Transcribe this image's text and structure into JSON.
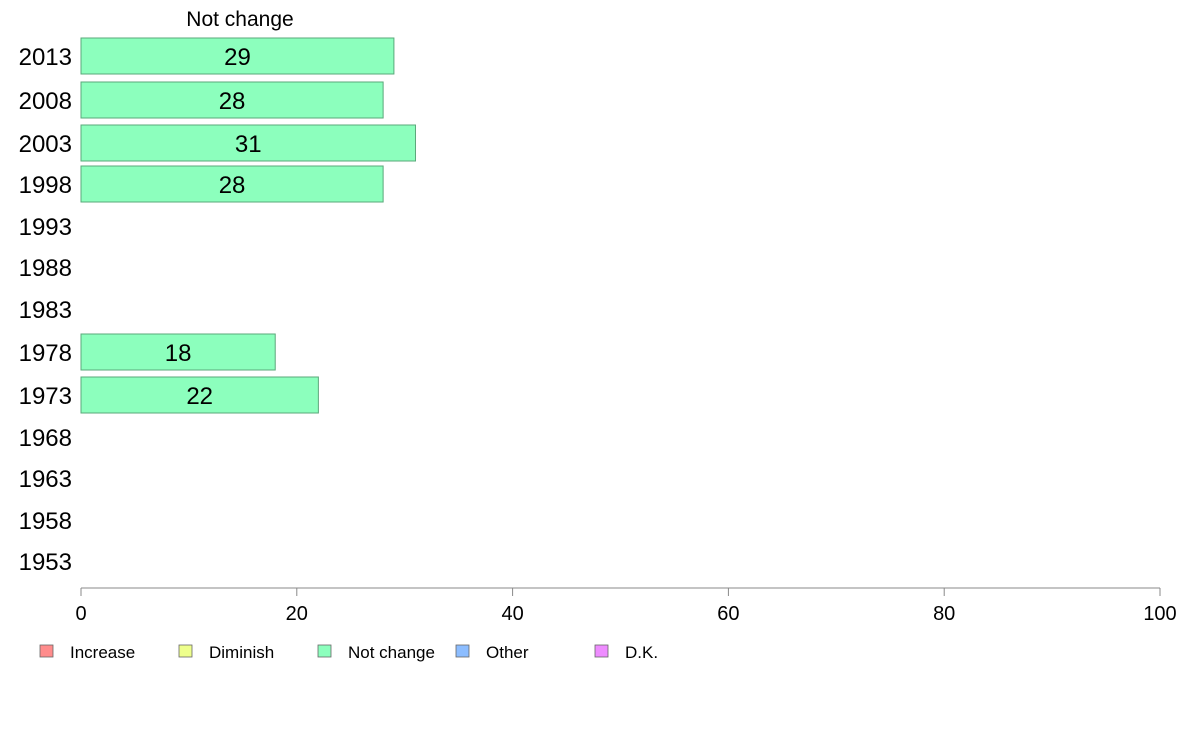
{
  "chart_data": {
    "type": "bar",
    "orientation": "horizontal",
    "series_title": "Not change",
    "categories": [
      "2013",
      "2008",
      "2003",
      "1998",
      "1993",
      "1988",
      "1983",
      "1978",
      "1973",
      "1968",
      "1963",
      "1958",
      "1953"
    ],
    "series": [
      {
        "name": "Not change",
        "values": [
          29,
          28,
          31,
          28,
          null,
          null,
          null,
          18,
          22,
          null,
          null,
          null,
          null
        ]
      }
    ],
    "data_labels": [
      "29",
      "28",
      "31",
      "28",
      "",
      "",
      "",
      "18",
      "22",
      "",
      "",
      "",
      ""
    ],
    "xlim": [
      0,
      100
    ],
    "xticks": [
      0,
      20,
      40,
      60,
      80,
      100
    ],
    "grid": false,
    "legend_position": "bottom",
    "legend": [
      {
        "label": "Increase",
        "color": "#ff8c8c"
      },
      {
        "label": "Diminish",
        "color": "#eeff8c"
      },
      {
        "label": "Not change",
        "color": "#8cffbd"
      },
      {
        "label": "Other",
        "color": "#8cbdff"
      },
      {
        "label": "D.K.",
        "color": "#ee8cff"
      }
    ],
    "bar_color": "#8cffbd",
    "bar_border_color": "#5aa87a",
    "axis_color": "#888888"
  }
}
